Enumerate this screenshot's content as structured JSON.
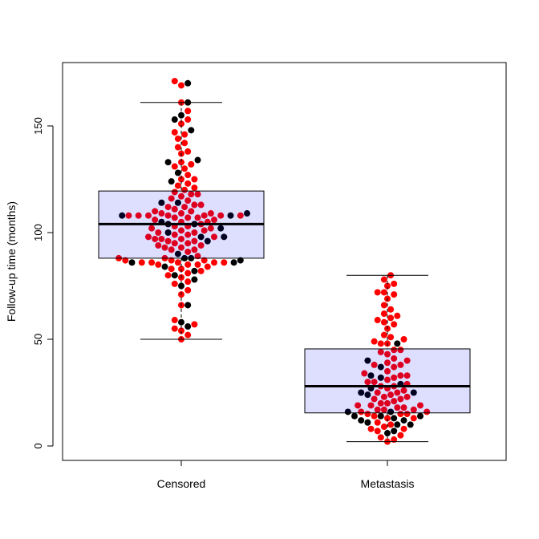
{
  "chart_data": {
    "type": "boxplot-beeswarm",
    "title": "",
    "xlabel": "",
    "ylabel": "Follow-up time (months)",
    "ylim": [
      -6,
      180
    ],
    "yticks": [
      0,
      50,
      100,
      150
    ],
    "categories": [
      "Censored",
      "Metastasis"
    ],
    "colors": {
      "r": "#FF0000",
      "k": "#000000",
      "box_fill": "rgba(0,0,255,0.13)",
      "box_border": "#000000"
    },
    "boxes": [
      {
        "category": "Censored",
        "whisker_low": 50,
        "q1": 88,
        "median": 104,
        "q3": 119.5,
        "whisker_high": 161
      },
      {
        "category": "Metastasis",
        "whisker_low": 2,
        "q1": 15.5,
        "median": 28,
        "q3": 45.5,
        "whisker_high": 80
      }
    ],
    "points": [
      {
        "category": "Censored",
        "values": [
          [
            171,
            "r"
          ],
          [
            170,
            "k"
          ],
          [
            169,
            "r"
          ],
          [
            161,
            "r"
          ],
          [
            161,
            "k"
          ],
          [
            157,
            "r"
          ],
          [
            155,
            "k"
          ],
          [
            153,
            "r"
          ],
          [
            153,
            "k"
          ],
          [
            151,
            "r"
          ],
          [
            148,
            "k"
          ],
          [
            147,
            "r"
          ],
          [
            146,
            "r"
          ],
          [
            144,
            "r"
          ],
          [
            142,
            "r"
          ],
          [
            140,
            "r"
          ],
          [
            138,
            "r"
          ],
          [
            137,
            "r"
          ],
          [
            134,
            "k"
          ],
          [
            133,
            "r"
          ],
          [
            133,
            "k"
          ],
          [
            132,
            "r"
          ],
          [
            131,
            "r"
          ],
          [
            130,
            "r"
          ],
          [
            128,
            "k"
          ],
          [
            127,
            "r"
          ],
          [
            125,
            "r"
          ],
          [
            125,
            "r"
          ],
          [
            124,
            "k"
          ],
          [
            123,
            "r"
          ],
          [
            122,
            "r"
          ],
          [
            121,
            "r"
          ],
          [
            120,
            "r"
          ],
          [
            119,
            "r"
          ],
          [
            118,
            "r"
          ],
          [
            118,
            "r"
          ],
          [
            117,
            "r"
          ],
          [
            116,
            "r"
          ],
          [
            115,
            "r"
          ],
          [
            114,
            "k"
          ],
          [
            114,
            "k"
          ],
          [
            113,
            "r"
          ],
          [
            113,
            "r"
          ],
          [
            112,
            "r"
          ],
          [
            112,
            "r"
          ],
          [
            111,
            "r"
          ],
          [
            110,
            "r"
          ],
          [
            110,
            "r"
          ],
          [
            109,
            "r"
          ],
          [
            109,
            "r"
          ],
          [
            109,
            "r"
          ],
          [
            109,
            "k"
          ],
          [
            108,
            "r"
          ],
          [
            108,
            "r"
          ],
          [
            108,
            "r"
          ],
          [
            108,
            "r"
          ],
          [
            108,
            "r"
          ],
          [
            108,
            "k"
          ],
          [
            108,
            "r"
          ],
          [
            108,
            "r"
          ],
          [
            108,
            "k"
          ],
          [
            107,
            "r"
          ],
          [
            107,
            "r"
          ],
          [
            107,
            "r"
          ],
          [
            106,
            "r"
          ],
          [
            106,
            "r"
          ],
          [
            105,
            "r"
          ],
          [
            105,
            "k"
          ],
          [
            105,
            "r"
          ],
          [
            104,
            "k"
          ],
          [
            104,
            "k"
          ],
          [
            104,
            "r"
          ],
          [
            103,
            "r"
          ],
          [
            103,
            "r"
          ],
          [
            102,
            "r"
          ],
          [
            102,
            "r"
          ],
          [
            102,
            "k"
          ],
          [
            101,
            "r"
          ],
          [
            101,
            "r"
          ],
          [
            100,
            "r"
          ],
          [
            100,
            "k"
          ],
          [
            100,
            "r"
          ],
          [
            99,
            "r"
          ],
          [
            99,
            "r"
          ],
          [
            98,
            "k"
          ],
          [
            98,
            "r"
          ],
          [
            98,
            "r"
          ],
          [
            98,
            "k"
          ],
          [
            97,
            "r"
          ],
          [
            97,
            "r"
          ],
          [
            97,
            "r"
          ],
          [
            96,
            "r"
          ],
          [
            96,
            "r"
          ],
          [
            96,
            "k"
          ],
          [
            95,
            "r"
          ],
          [
            95,
            "r"
          ],
          [
            94,
            "r"
          ],
          [
            94,
            "r"
          ],
          [
            93,
            "r"
          ],
          [
            93,
            "r"
          ],
          [
            92,
            "r"
          ],
          [
            92,
            "r"
          ],
          [
            91,
            "r"
          ],
          [
            90,
            "k"
          ],
          [
            89,
            "r"
          ],
          [
            88,
            "k"
          ],
          [
            88,
            "k"
          ],
          [
            88,
            "r"
          ],
          [
            88,
            "r"
          ],
          [
            87,
            "r"
          ],
          [
            87,
            "r"
          ],
          [
            87,
            "r"
          ],
          [
            87,
            "k"
          ],
          [
            86,
            "r"
          ],
          [
            86,
            "r"
          ],
          [
            86,
            "r"
          ],
          [
            86,
            "r"
          ],
          [
            86,
            "r"
          ],
          [
            86,
            "k"
          ],
          [
            86,
            "k"
          ],
          [
            85,
            "r"
          ],
          [
            85,
            "r"
          ],
          [
            85,
            "r"
          ],
          [
            84,
            "k"
          ],
          [
            84,
            "r"
          ],
          [
            83,
            "r"
          ],
          [
            83,
            "r"
          ],
          [
            82,
            "k"
          ],
          [
            82,
            "r"
          ],
          [
            81,
            "r"
          ],
          [
            80,
            "k"
          ],
          [
            80,
            "r"
          ],
          [
            79,
            "r"
          ],
          [
            78,
            "k"
          ],
          [
            77,
            "r"
          ],
          [
            76,
            "r"
          ],
          [
            75,
            "k"
          ],
          [
            73,
            "r"
          ],
          [
            71,
            "r"
          ],
          [
            66,
            "r"
          ],
          [
            66,
            "k"
          ],
          [
            59,
            "r"
          ],
          [
            58,
            "k"
          ],
          [
            57,
            "r"
          ],
          [
            56,
            "k"
          ],
          [
            55,
            "r"
          ],
          [
            54,
            "r"
          ],
          [
            52,
            "r"
          ],
          [
            50,
            "r"
          ]
        ]
      },
      {
        "category": "Metastasis",
        "values": [
          [
            80,
            "r"
          ],
          [
            78,
            "r"
          ],
          [
            76,
            "r"
          ],
          [
            75,
            "r"
          ],
          [
            72,
            "r"
          ],
          [
            72,
            "r"
          ],
          [
            71,
            "r"
          ],
          [
            69,
            "r"
          ],
          [
            66,
            "r"
          ],
          [
            64,
            "r"
          ],
          [
            62,
            "r"
          ],
          [
            61,
            "r"
          ],
          [
            60,
            "r"
          ],
          [
            59,
            "r"
          ],
          [
            58,
            "r"
          ],
          [
            57,
            "r"
          ],
          [
            55,
            "r"
          ],
          [
            52,
            "r"
          ],
          [
            51,
            "r"
          ],
          [
            50,
            "r"
          ],
          [
            49,
            "r"
          ],
          [
            48,
            "r"
          ],
          [
            48,
            "r"
          ],
          [
            48,
            "k"
          ],
          [
            45,
            "r"
          ],
          [
            45,
            "r"
          ],
          [
            44,
            "r"
          ],
          [
            43,
            "r"
          ],
          [
            41,
            "r"
          ],
          [
            40,
            "r"
          ],
          [
            40,
            "k"
          ],
          [
            39,
            "r"
          ],
          [
            38,
            "r"
          ],
          [
            38,
            "r"
          ],
          [
            37,
            "r"
          ],
          [
            37,
            "k"
          ],
          [
            35,
            "r"
          ],
          [
            34,
            "r"
          ],
          [
            33,
            "r"
          ],
          [
            33,
            "k"
          ],
          [
            33,
            "r"
          ],
          [
            32,
            "r"
          ],
          [
            32,
            "k"
          ],
          [
            31,
            "r"
          ],
          [
            30,
            "r"
          ],
          [
            30,
            "r"
          ],
          [
            29,
            "k"
          ],
          [
            29,
            "r"
          ],
          [
            28,
            "r"
          ],
          [
            28,
            "r"
          ],
          [
            27,
            "r"
          ],
          [
            27,
            "k"
          ],
          [
            26,
            "r"
          ],
          [
            25,
            "r"
          ],
          [
            25,
            "r"
          ],
          [
            25,
            "k"
          ],
          [
            25,
            "k"
          ],
          [
            24,
            "r"
          ],
          [
            24,
            "k"
          ],
          [
            23,
            "r"
          ],
          [
            23,
            "r"
          ],
          [
            22,
            "r"
          ],
          [
            22,
            "r"
          ],
          [
            21,
            "r"
          ],
          [
            20,
            "r"
          ],
          [
            20,
            "r"
          ],
          [
            19,
            "r"
          ],
          [
            19,
            "r"
          ],
          [
            19,
            "r"
          ],
          [
            18,
            "r"
          ],
          [
            18,
            "r"
          ],
          [
            17,
            "r"
          ],
          [
            17,
            "r"
          ],
          [
            17,
            "r"
          ],
          [
            16,
            "k"
          ],
          [
            16,
            "r"
          ],
          [
            16,
            "r"
          ],
          [
            16,
            "k"
          ],
          [
            15,
            "r"
          ],
          [
            15,
            "r"
          ],
          [
            15,
            "r"
          ],
          [
            14,
            "k"
          ],
          [
            14,
            "r"
          ],
          [
            14,
            "k"
          ],
          [
            14,
            "k"
          ],
          [
            13,
            "r"
          ],
          [
            13,
            "k"
          ],
          [
            13,
            "r"
          ],
          [
            12,
            "k"
          ],
          [
            12,
            "k"
          ],
          [
            11,
            "r"
          ],
          [
            11,
            "k"
          ],
          [
            10,
            "r"
          ],
          [
            10,
            "k"
          ],
          [
            10,
            "k"
          ],
          [
            9,
            "r"
          ],
          [
            8,
            "r"
          ],
          [
            8,
            "r"
          ],
          [
            7,
            "k"
          ],
          [
            7,
            "r"
          ],
          [
            6,
            "k"
          ],
          [
            5,
            "r"
          ],
          [
            4,
            "r"
          ],
          [
            3,
            "r"
          ],
          [
            2,
            "r"
          ]
        ]
      }
    ]
  }
}
